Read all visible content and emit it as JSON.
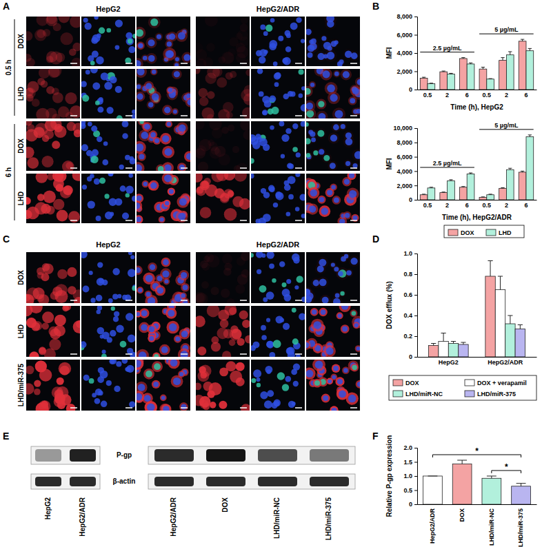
{
  "figure": {
    "panel_labels": [
      "A",
      "B",
      "C",
      "D",
      "E",
      "F"
    ],
    "A": {
      "columns": [
        "HepG2",
        "HepG2/ADR"
      ],
      "times": [
        "0.5 h",
        "6 h"
      ],
      "rows": [
        "DOX",
        "LHD"
      ]
    },
    "C": {
      "columns": [
        "HepG2",
        "HepG2/ADR"
      ],
      "rows": [
        "DOX",
        "LHD",
        "LHD/miR-375"
      ]
    },
    "E": {
      "rows": [
        "P-gp",
        "β-actin"
      ],
      "left_lanes": [
        "HepG2",
        "HepG2/ADR"
      ],
      "right_lanes": [
        "HepG2/ADR",
        "DOX",
        "LHD/miR-NC",
        "LHD/miR-375"
      ]
    }
  },
  "chart_data": [
    {
      "type": "bar",
      "series": [
        {
          "name": "DOX",
          "color": "#f4a3a3"
        },
        {
          "name": "LHD",
          "color": "#b2f0dc"
        }
      ],
      "legend": "bottom",
      "subplots": [
        {
          "x_label": "Time (h), HepG2",
          "y_label": "MFI",
          "categories": [
            "0.5",
            "2",
            "6",
            "0.5",
            "2",
            "6"
          ],
          "annotations": [
            {
              "text": "2.5 µg/mL",
              "start": 0,
              "end": 2
            },
            {
              "text": "5 µg/mL",
              "start": 3,
              "end": 5
            }
          ],
          "ylim": [
            0,
            8000
          ],
          "yticks": [
            0,
            {
              "value": 2000,
              "label": "2,000"
            },
            {
              "value": 4000,
              "label": "4,000"
            },
            {
              "value": 6000,
              "label": "6,000"
            },
            {
              "value": 8000,
              "label": "8,000"
            }
          ],
          "series": [
            {
              "values": [
                1250,
                1950,
                3400,
                2250,
                3200,
                5300
              ],
              "errors": [
                100,
                80,
                100,
                200,
                300,
                200
              ]
            },
            {
              "values": [
                650,
                1700,
                2800,
                1150,
                3800,
                4250
              ],
              "errors": [
                50,
                80,
                120,
                50,
                350,
                250
              ]
            }
          ]
        },
        {
          "x_label": "Time (h), HepG2/ADR",
          "y_label": "MFI",
          "categories": [
            "0.5",
            "2",
            "6",
            "0.5",
            "2",
            "6"
          ],
          "annotations": [
            {
              "text": "2.5 µg/mL",
              "start": 0,
              "end": 2
            },
            {
              "text": "5 µg/mL",
              "start": 3,
              "end": 5
            }
          ],
          "ylim": [
            0,
            10000
          ],
          "yticks": [
            0,
            {
              "value": 2000,
              "label": "2,000"
            },
            {
              "value": 4000,
              "label": "4,000"
            },
            {
              "value": 6000,
              "label": "6,000"
            },
            {
              "value": 8000,
              "label": "8,000"
            },
            {
              "value": 10000,
              "label": "10,000"
            }
          ],
          "series": [
            {
              "values": [
                700,
                1000,
                1750,
                350,
                1600,
                3850
              ],
              "errors": [
                80,
                80,
                100,
                50,
                80,
                150
              ]
            },
            {
              "values": [
                1650,
                2650,
                3600,
                700,
                4200,
                8800
              ],
              "errors": [
                100,
                150,
                150,
                80,
                200,
                250
              ]
            }
          ]
        }
      ]
    },
    {
      "type": "bar",
      "y_label": "DOX efflux (%)",
      "categories": [
        "HepG2",
        "HepG2/ADR"
      ],
      "ylim": [
        0,
        1
      ],
      "yticks": [
        0,
        0.2,
        0.4,
        0.6,
        0.8,
        {
          "value": 1,
          "label": "1.0"
        }
      ],
      "legend": "bottom",
      "series": [
        {
          "name": "DOX",
          "color": "#f4a3a3",
          "values": [
            0.11,
            0.78
          ],
          "errors": [
            0.02,
            0.15
          ]
        },
        {
          "name": "DOX + verapamil",
          "color": "#ffffff",
          "values": [
            0.15,
            0.65
          ],
          "errors": [
            0.08,
            0.13
          ]
        },
        {
          "name": "LHD/miR-NC",
          "color": "#b2f0dc",
          "values": [
            0.13,
            0.32
          ],
          "errors": [
            0.02,
            0.08
          ]
        },
        {
          "name": "LHD/miR-375",
          "color": "#b9b5f0",
          "values": [
            0.12,
            0.27
          ],
          "errors": [
            0.02,
            0.04
          ]
        }
      ]
    },
    {
      "type": "bar",
      "y_label": "Relative P-gp expression",
      "categories": [
        "HepG2/ADR",
        "DOX",
        "LHD/miR-NC",
        "LHD/miR-375"
      ],
      "values": [
        1.0,
        1.43,
        0.92,
        0.64
      ],
      "errors": [
        0,
        0.13,
        0.08,
        0.1
      ],
      "colors": [
        "#ffffff",
        "#f4a3a3",
        "#b2f0dc",
        "#b9b5f0"
      ],
      "ylim": [
        0,
        2
      ],
      "yticks": [
        0,
        0.5,
        {
          "value": 1,
          "label": "1.0"
        },
        1.5,
        {
          "value": 2,
          "label": "2.0"
        }
      ],
      "annotations": [
        {
          "text": "*",
          "from": 0,
          "to": 3
        },
        {
          "text": "*",
          "from": 2,
          "to": 3
        }
      ]
    }
  ]
}
